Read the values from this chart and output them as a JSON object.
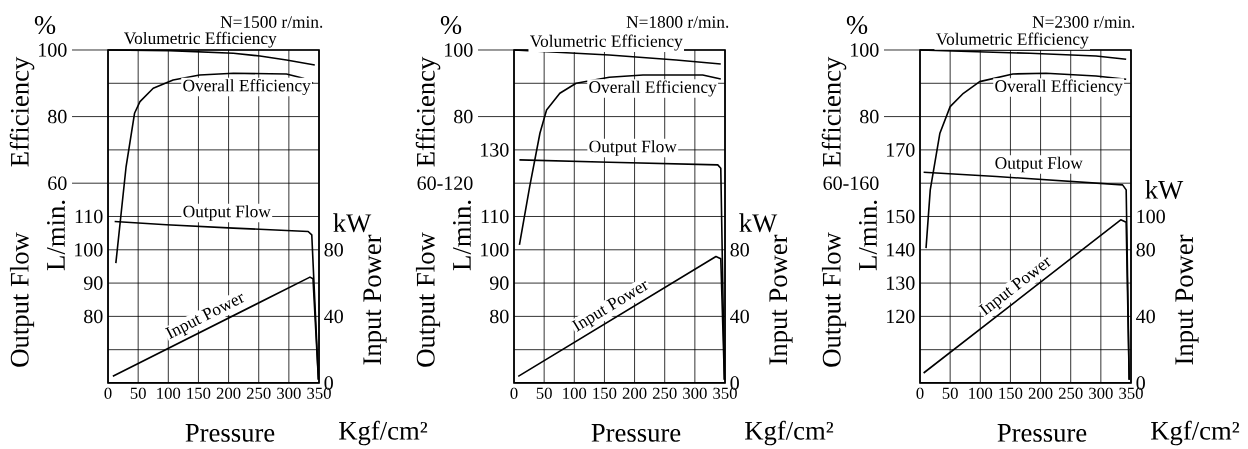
{
  "chart_data": [
    {
      "type": "line",
      "title": "N=1500 r/min.",
      "xlabel": "Pressure",
      "ylabel": "Efficiency",
      "y2label": "Input Power",
      "y3label": "Output Flow",
      "annotations": [
        "%",
        "L/min.",
        "kW",
        "Kgf/cm²"
      ],
      "xlim": [
        0,
        350
      ],
      "xticks": [
        0,
        50,
        100,
        150,
        200,
        250,
        300,
        350
      ],
      "ylim": [
        0,
        100
      ],
      "yticks": [
        {
          "value": 0,
          "label": null
        },
        {
          "value": 10,
          "label": null
        },
        {
          "value": 20,
          "label": null
        },
        {
          "value": 30,
          "label": null
        },
        {
          "value": 40,
          "label": null
        },
        {
          "value": 50,
          "label": null
        },
        60,
        {
          "value": 70,
          "label": null
        },
        80,
        {
          "value": 90,
          "label": null
        },
        100
      ],
      "y3lim": [
        60,
        160
      ],
      "y3ticks": [
        80,
        90,
        100,
        110
      ],
      "y2lim": [
        0,
        200
      ],
      "y2ticks": [
        0,
        40,
        80
      ],
      "grid": true,
      "series": [
        {
          "name": "Volumetric Efficiency",
          "color": "#000000",
          "axis": "y",
          "x": [
            0,
            102,
            208,
            252,
            296,
            343
          ],
          "values": [
            100,
            99.8,
            99,
            98.2,
            97,
            95.5
          ]
        },
        {
          "name": "Overall Efficiency",
          "color": "#000000",
          "axis": "y",
          "x": [
            13,
            30,
            44,
            53,
            75,
            108,
            152,
            208,
            296,
            324,
            340
          ],
          "values": [
            36,
            65,
            81,
            84.5,
            88.5,
            91,
            92.5,
            93,
            92.8,
            91.5,
            90
          ]
        },
        {
          "name": "Output Flow",
          "color": "#000000",
          "axis": "y3",
          "x": [
            11,
            97,
            208,
            332,
            338,
            349
          ],
          "values": [
            108.5,
            107.5,
            106.5,
            105.5,
            104.5,
            61
          ]
        },
        {
          "name": "Input Power",
          "color": "#000000",
          "axis": "y2",
          "x": [
            8,
            335,
            340,
            349
          ],
          "values": [
            4,
            63.6,
            62.6,
            2
          ]
        }
      ]
    },
    {
      "type": "line",
      "title": "N=1800 r/min.",
      "xlabel": "Pressure",
      "ylabel": "Efficiency",
      "y2label": "Input Power",
      "y3label": "Output Flow",
      "annotations": [
        "%",
        "L/min.",
        "kW",
        "Kgf/cm²"
      ],
      "xlim": [
        0,
        350
      ],
      "xticks": [
        0,
        50,
        100,
        150,
        200,
        250,
        300,
        350
      ],
      "ylim": [
        0,
        100
      ],
      "yticks": [
        {
          "value": 0,
          "label": null
        },
        {
          "value": 10,
          "label": null
        },
        {
          "value": 20,
          "label": null
        },
        {
          "value": 30,
          "label": null
        },
        {
          "value": 40,
          "label": null
        },
        {
          "value": 50,
          "label": null
        },
        {
          "value": 60,
          "label": "60-120"
        },
        {
          "value": 70,
          "label": null
        },
        80,
        {
          "value": 90,
          "label": null
        },
        100
      ],
      "y3lim": [
        60,
        160
      ],
      "y3ticks": [
        80,
        90,
        100,
        110,
        {
          "value": 120,
          "label": null
        },
        130
      ],
      "y2lim": [
        0,
        200
      ],
      "y2ticks": [
        0,
        40,
        80
      ],
      "grid": true,
      "series": [
        {
          "name": "Volumetric Efficiency",
          "color": "#000000",
          "axis": "y",
          "x": [
            0,
            158,
            269,
            343
          ],
          "values": [
            100,
            98.5,
            97,
            95.8
          ]
        },
        {
          "name": "Overall Efficiency",
          "color": "#000000",
          "axis": "y",
          "x": [
            9,
            26,
            43,
            54,
            76,
            103,
            158,
            214,
            313,
            343
          ],
          "values": [
            41.5,
            59,
            75,
            82,
            87,
            90,
            91.8,
            92.5,
            92.5,
            91.3
          ]
        },
        {
          "name": "Output Flow",
          "color": "#000000",
          "axis": "y3",
          "x": [
            9,
            158,
            338,
            343,
            349
          ],
          "values": [
            127,
            126.3,
            125.5,
            124.5,
            61
          ]
        },
        {
          "name": "Input Power",
          "color": "#000000",
          "axis": "y2",
          "x": [
            7,
            335,
            343,
            349
          ],
          "values": [
            4,
            76,
            74.6,
            2
          ]
        }
      ]
    },
    {
      "type": "line",
      "title": "N=2300 r/min.",
      "xlabel": "Pressure",
      "ylabel": "Efficiency",
      "y2label": "Input Power",
      "y3label": "Output Flow",
      "annotations": [
        "%",
        "L/min.",
        "kW",
        "Kgf/cm²"
      ],
      "xlim": [
        0,
        350
      ],
      "xticks": [
        0,
        50,
        100,
        150,
        200,
        250,
        300,
        350
      ],
      "ylim": [
        0,
        100
      ],
      "yticks": [
        {
          "value": 0,
          "label": null
        },
        {
          "value": 10,
          "label": null
        },
        {
          "value": 20,
          "label": null
        },
        {
          "value": 30,
          "label": null
        },
        {
          "value": 40,
          "label": null
        },
        {
          "value": 50,
          "label": null
        },
        {
          "value": 60,
          "label": "60-160"
        },
        {
          "value": 70,
          "label": null
        },
        80,
        {
          "value": 90,
          "label": null
        },
        100
      ],
      "y3lim": [
        100,
        200
      ],
      "y3ticks": [
        120,
        130,
        140,
        150,
        {
          "value": 160,
          "label": null
        },
        170
      ],
      "y2lim": [
        0,
        200
      ],
      "y2ticks": [
        0,
        40,
        80,
        100
      ],
      "grid": true,
      "series": [
        {
          "name": "Volumetric Efficiency",
          "color": "#000000",
          "axis": "y",
          "x": [
            0,
            182,
            292,
            342
          ],
          "values": [
            100,
            99,
            98.2,
            97.2
          ]
        },
        {
          "name": "Overall Efficiency",
          "color": "#000000",
          "axis": "y",
          "x": [
            10,
            17,
            33,
            50,
            72,
            99,
            154,
            209,
            292,
            342
          ],
          "values": [
            40.5,
            58,
            75,
            83,
            87,
            90.5,
            92.8,
            93,
            92.2,
            91.2
          ]
        },
        {
          "name": "Output Flow",
          "color": "#000000",
          "axis": "y3",
          "x": [
            6,
            127,
            336,
            342,
            347
          ],
          "values": [
            163.3,
            162,
            159.5,
            158,
            101
          ]
        },
        {
          "name": "Input Power",
          "color": "#000000",
          "axis": "y2",
          "x": [
            6,
            333,
            342,
            347
          ],
          "values": [
            6,
            98,
            96.6,
            2
          ]
        }
      ]
    }
  ]
}
